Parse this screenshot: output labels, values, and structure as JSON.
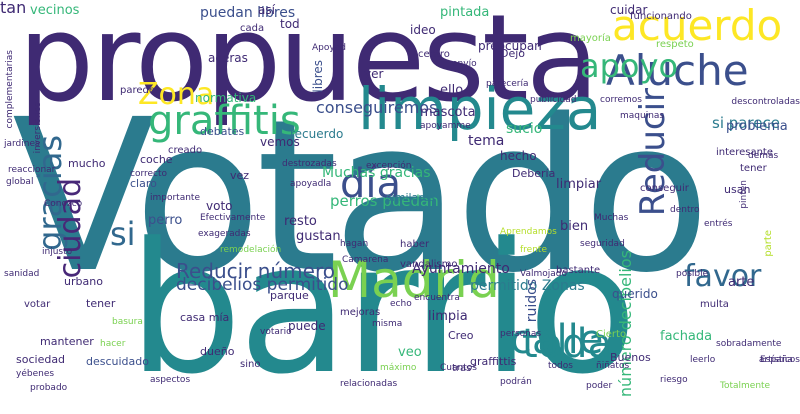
{
  "palette": {
    "purple_dark": "#3f2a73",
    "indigo": "#3b4f8c",
    "blue": "#31688e",
    "teal": "#2b7b8e",
    "teal_green": "#23898e",
    "green": "#35b779",
    "lime": "#7ad151",
    "yellow": "#fde725",
    "olive": "#b5de2b",
    "violet": "#482878"
  },
  "words": [
    {
      "text": "Votado",
      "color": "#2b7b8e",
      "vertical": false
    },
    {
      "text": "barrio",
      "color": "#23898e",
      "vertical": false
    },
    {
      "text": "propuesta",
      "color": "#3f2a73",
      "vertical": false
    },
    {
      "text": "limpieza",
      "color": "#23898e",
      "vertical": false
    },
    {
      "text": "acuerdo",
      "color": "#fde725",
      "vertical": false
    },
    {
      "text": "Aluche",
      "color": "#3b4f8c",
      "vertical": false
    },
    {
      "text": "Madrid",
      "color": "#7ad151",
      "vertical": false
    },
    {
      "text": "graffitis",
      "color": "#35b779",
      "vertical": false
    },
    {
      "text": "toda",
      "color": "#23898e",
      "vertical": false
    },
    {
      "text": "calle",
      "color": "#23898e",
      "vertical": false
    },
    {
      "text": "Reducir",
      "color": "#3b4f8c",
      "vertical": true
    },
    {
      "text": "Zona",
      "color": "#fde725",
      "vertical": false
    },
    {
      "text": "favor",
      "color": "#31688e",
      "vertical": false
    },
    {
      "text": "día",
      "color": "#3b4f8c",
      "vertical": false
    },
    {
      "text": "si",
      "color": "#31688e",
      "vertical": false
    },
    {
      "text": "apoyo",
      "color": "#35b779",
      "vertical": false
    },
    {
      "text": "gracias",
      "color": "#31688e",
      "vertical": true
    },
    {
      "text": "ciudad",
      "color": "#482878",
      "vertical": true
    },
    {
      "text": "Reducir número",
      "color": "#3b4f8c",
      "vertical": false
    },
    {
      "text": "decibelios permitido",
      "color": "#3b4f8c",
      "vertical": false
    },
    {
      "text": "conseguiremos",
      "color": "#3b4f8c",
      "vertical": false
    },
    {
      "text": "Muchas gracias",
      "color": "#35b779",
      "vertical": false
    },
    {
      "text": "perros puedan",
      "color": "#35b779",
      "vertical": false
    },
    {
      "text": "puedan libres",
      "color": "#3b4f8c",
      "vertical": false
    },
    {
      "text": "Ayuntamiento",
      "color": "#3f2a73",
      "vertical": false
    },
    {
      "text": "permitido Zonas",
      "color": "#2b7b8e",
      "vertical": false
    },
    {
      "text": "ruidos",
      "color": "#3b4f8c",
      "vertical": true
    },
    {
      "text": "sucio",
      "color": "#35b779",
      "vertical": false
    },
    {
      "text": "tema",
      "color": "#3f2a73",
      "vertical": false
    },
    {
      "text": "número decibelios",
      "color": "#35b779",
      "vertical": true
    },
    {
      "text": "si parece",
      "color": "#2b7b8e",
      "vertical": false
    },
    {
      "text": "problema",
      "color": "#3b4f8c",
      "vertical": false
    },
    {
      "text": "arte",
      "color": "#3f2a73",
      "vertical": false
    },
    {
      "text": "limpiar",
      "color": "#3f2a73",
      "vertical": false
    },
    {
      "text": "limpia",
      "color": "#3f2a73",
      "vertical": false
    },
    {
      "text": "veo",
      "color": "#35b779",
      "vertical": false
    },
    {
      "text": "ello",
      "color": "#3f2a73",
      "vertical": false
    },
    {
      "text": "pintada",
      "color": "#35b779",
      "vertical": false
    },
    {
      "text": "vecinos",
      "color": "#35b779",
      "vertical": false
    },
    {
      "text": "perro",
      "color": "#3b4f8c",
      "vertical": false
    },
    {
      "text": "bien",
      "color": "#3f2a73",
      "vertical": false
    },
    {
      "text": "mascota",
      "color": "#3f2a73",
      "vertical": false
    },
    {
      "text": "fachada",
      "color": "#35b779",
      "vertical": false
    },
    {
      "text": "gustan",
      "color": "#3f2a73",
      "vertical": false
    },
    {
      "text": "resto",
      "color": "#3f2a73",
      "vertical": false
    },
    {
      "text": "normativa",
      "color": "#35b779",
      "vertical": false
    },
    {
      "text": "aceras",
      "color": "#3f2a73",
      "vertical": false
    },
    {
      "text": "ver",
      "color": "#3f2a73",
      "vertical": false
    },
    {
      "text": "hecho",
      "color": "#3f2a73",
      "vertical": false
    },
    {
      "text": "recuerdo",
      "color": "#2b7b8e",
      "vertical": false
    },
    {
      "text": "preocupan",
      "color": "#3f2a73",
      "vertical": false
    },
    {
      "text": "cuidar",
      "color": "#3f2a73",
      "vertical": false
    },
    {
      "text": "así",
      "color": "#3f2a73",
      "vertical": false
    },
    {
      "text": "similares",
      "color": "#2b7b8e",
      "vertical": false
    },
    {
      "text": "puede",
      "color": "#3f2a73",
      "vertical": false
    },
    {
      "text": "libres",
      "color": "#3b4f8c",
      "vertical": true
    },
    {
      "text": "tod",
      "color": "#3f2a73",
      "vertical": false
    },
    {
      "text": "ideo",
      "color": "#3f2a73",
      "vertical": false
    },
    {
      "text": "voto",
      "color": "#3f2a73",
      "vertical": false
    },
    {
      "text": "querido",
      "color": "#3b4f8c",
      "vertical": false
    },
    {
      "text": "vemos",
      "color": "#3f2a73",
      "vertical": false
    },
    {
      "text": "mucho",
      "color": "#3f2a73",
      "vertical": false
    },
    {
      "text": "urbano",
      "color": "#3f2a73",
      "vertical": false
    },
    {
      "text": "coche",
      "color": "#3f2a73",
      "vertical": false
    },
    {
      "text": "Dejo",
      "color": "#3f2a73",
      "vertical": false
    },
    {
      "text": "debates",
      "color": "#3b4f8c",
      "vertical": false
    },
    {
      "text": "Creo",
      "color": "#3f2a73",
      "vertical": false
    },
    {
      "text": "Debería",
      "color": "#3f2a73",
      "vertical": false
    },
    {
      "text": "vez",
      "color": "#3f2a73",
      "vertical": false
    },
    {
      "text": "tener",
      "color": "#3f2a73",
      "vertical": false
    },
    {
      "text": "casa mía",
      "color": "#3f2a73",
      "vertical": false
    },
    {
      "text": "parque",
      "color": "#3f2a73",
      "vertical": false
    },
    {
      "text": "Buenos",
      "color": "#3f2a73",
      "vertical": false
    },
    {
      "text": "graffittis",
      "color": "#3f2a73",
      "vertical": false
    },
    {
      "text": "claro",
      "color": "#3b4f8c",
      "vertical": false
    },
    {
      "text": "dueño",
      "color": "#3f2a73",
      "vertical": false
    },
    {
      "text": "mantener",
      "color": "#3f2a73",
      "vertical": false
    },
    {
      "text": "sociedad",
      "color": "#3f2a73",
      "vertical": false
    },
    {
      "text": "usan",
      "color": "#3f2a73",
      "vertical": false
    },
    {
      "text": "tener",
      "color": "#3f2a73",
      "vertical": false
    },
    {
      "text": "mayoría",
      "color": "#7ad151",
      "vertical": false
    },
    {
      "text": "respeto",
      "color": "#7ad151",
      "vertical": false
    },
    {
      "text": "sino",
      "color": "#3f2a73",
      "vertical": false
    },
    {
      "text": "conseguir",
      "color": "#3f2a73",
      "vertical": false
    },
    {
      "text": "interesante",
      "color": "#3f2a73",
      "vertical": false
    },
    {
      "text": "centro",
      "color": "#3f2a73",
      "vertical": false
    },
    {
      "text": "bastante",
      "color": "#3f2a73",
      "vertical": false
    },
    {
      "text": "mejoras",
      "color": "#3f2a73",
      "vertical": false
    },
    {
      "text": "haber",
      "color": "#3f2a73",
      "vertical": false
    },
    {
      "text": "tras",
      "color": "#3f2a73",
      "vertical": false
    },
    {
      "text": "vandalismo",
      "color": "#3f2a73",
      "vertical": false
    },
    {
      "text": "descuidado",
      "color": "#3b4f8c",
      "vertical": false
    },
    {
      "text": "Cierto",
      "color": "#7ad151",
      "vertical": false
    },
    {
      "text": "votar",
      "color": "#3f2a73",
      "vertical": false
    },
    {
      "text": "creado",
      "color": "#3f2a73",
      "vertical": false
    },
    {
      "text": "cada",
      "color": "#3f2a73",
      "vertical": false
    },
    {
      "text": "multa",
      "color": "#3f2a73",
      "vertical": false
    },
    {
      "text": "parte",
      "color": "#b5de2b",
      "vertical": true
    },
    {
      "text": "funcionando",
      "color": "#3f2a73",
      "vertical": false
    },
    {
      "text": "paredes",
      "color": "#3f2a73",
      "vertical": false
    },
    {
      "text": "complementarias",
      "color": "#3f2a73",
      "vertical": true
    },
    {
      "text": "reaccionar",
      "color": "#3f2a73",
      "vertical": false
    },
    {
      "text": "global",
      "color": "#3f2a73",
      "vertical": false
    },
    {
      "text": "sanidad",
      "color": "#3f2a73",
      "vertical": false
    },
    {
      "text": "jardines",
      "color": "#3f2a73",
      "vertical": false
    },
    {
      "text": "inversiones",
      "color": "#3f2a73",
      "vertical": true
    },
    {
      "text": "injusto",
      "color": "#3f2a73",
      "vertical": false
    },
    {
      "text": "Conozco",
      "color": "#3f2a73",
      "vertical": false
    },
    {
      "text": "Apoyad",
      "color": "#3f2a73",
      "vertical": false
    },
    {
      "text": "envío",
      "color": "#3f2a73",
      "vertical": false
    },
    {
      "text": "pinten",
      "color": "#3f2a73",
      "vertical": true
    },
    {
      "text": "entrés",
      "color": "#3f2a73",
      "vertical": false
    },
    {
      "text": "dentro",
      "color": "#3f2a73",
      "vertical": false
    },
    {
      "text": "artísticos",
      "color": "#3f2a73",
      "vertical": false
    },
    {
      "text": "España",
      "color": "#3f2a73",
      "vertical": false
    },
    {
      "text": "posible",
      "color": "#3f2a73",
      "vertical": false
    },
    {
      "text": "seguridad",
      "color": "#3f2a73",
      "vertical": false
    },
    {
      "text": "frente",
      "color": "#b5de2b",
      "vertical": false
    },
    {
      "text": "Valmojado",
      "color": "#3f2a73",
      "vertical": false
    },
    {
      "text": "excepción",
      "color": "#3f2a73",
      "vertical": false
    },
    {
      "text": "misma",
      "color": "#3f2a73",
      "vertical": false
    },
    {
      "text": "hagan",
      "color": "#3f2a73",
      "vertical": false
    },
    {
      "text": "Camarena",
      "color": "#3f2a73",
      "vertical": false
    },
    {
      "text": "apoyadla",
      "color": "#3f2a73",
      "vertical": false
    },
    {
      "text": "destrozadas",
      "color": "#3f2a73",
      "vertical": false
    },
    {
      "text": "Efectivamente",
      "color": "#3f2a73",
      "vertical": false
    },
    {
      "text": "exageradas",
      "color": "#3f2a73",
      "vertical": false
    },
    {
      "text": "importante",
      "color": "#3f2a73",
      "vertical": false
    },
    {
      "text": "correcto",
      "color": "#3f2a73",
      "vertical": false
    },
    {
      "text": "basura",
      "color": "#7ad151",
      "vertical": false
    },
    {
      "text": "hacer",
      "color": "#7ad151",
      "vertical": false
    },
    {
      "text": "corremos",
      "color": "#3f2a73",
      "vertical": false
    },
    {
      "text": "maquinas",
      "color": "#3f2a73",
      "vertical": false
    },
    {
      "text": "parecería",
      "color": "#3f2a73",
      "vertical": false
    },
    {
      "text": "publicidad",
      "color": "#3f2a73",
      "vertical": false
    },
    {
      "text": "descontroladas",
      "color": "#3f2a73",
      "vertical": false
    },
    {
      "text": "demás",
      "color": "#3f2a73",
      "vertical": false
    },
    {
      "text": "Muchas",
      "color": "#3f2a73",
      "vertical": false
    },
    {
      "text": "Aprendamos",
      "color": "#b5de2b",
      "vertical": false
    },
    {
      "text": "apoyamme",
      "color": "#3f2a73",
      "vertical": false
    },
    {
      "text": "votario",
      "color": "#3f2a73",
      "vertical": false
    },
    {
      "text": "remodelación",
      "color": "#7ad151",
      "vertical": false
    },
    {
      "text": "podrán",
      "color": "#3f2a73",
      "vertical": false
    },
    {
      "text": "máximo",
      "color": "#7ad151",
      "vertical": false
    },
    {
      "text": "relacionadas",
      "color": "#3f2a73",
      "vertical": false
    },
    {
      "text": "aspectos",
      "color": "#3f2a73",
      "vertical": false
    },
    {
      "text": "riesgo",
      "color": "#3f2a73",
      "vertical": false
    },
    {
      "text": "leerlo",
      "color": "#3f2a73",
      "vertical": false
    },
    {
      "text": "sobradamente",
      "color": "#3f2a73",
      "vertical": false
    },
    {
      "text": "ñiñatos",
      "color": "#3f2a73",
      "vertical": false
    },
    {
      "text": "todos",
      "color": "#3f2a73",
      "vertical": false
    },
    {
      "text": "encuentra",
      "color": "#3f2a73",
      "vertical": false
    },
    {
      "text": "echo",
      "color": "#3f2a73",
      "vertical": false
    },
    {
      "text": "Cuantos",
      "color": "#3f2a73",
      "vertical": false
    },
    {
      "text": "yébenes",
      "color": "#3f2a73",
      "vertical": false
    },
    {
      "text": "probado",
      "color": "#3f2a73",
      "vertical": false
    },
    {
      "text": "Totalmente",
      "color": "#7ad151",
      "vertical": false
    },
    {
      "text": "poder",
      "color": "#3f2a73",
      "vertical": false
    },
    {
      "text": "personas",
      "color": "#3f2a73",
      "vertical": false
    },
    {
      "text": "tan",
      "color": "#3f2a73",
      "vertical": false
    }
  ]
}
